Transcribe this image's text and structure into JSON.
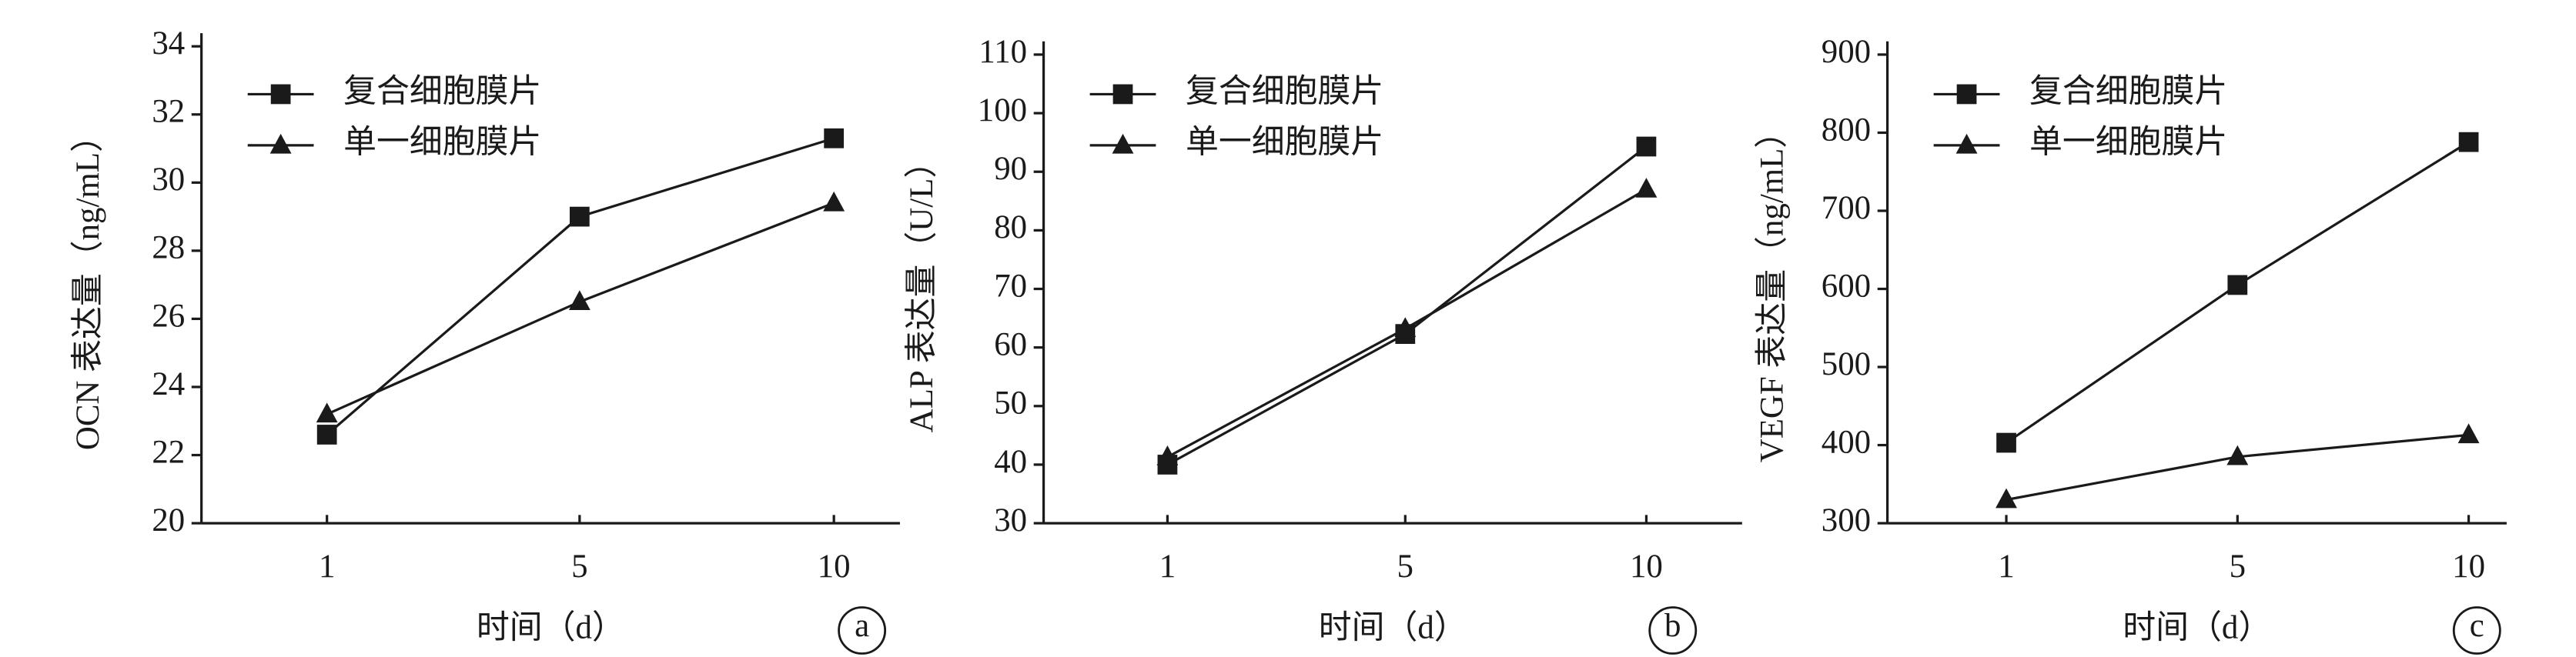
{
  "chart_data": [
    {
      "type": "line",
      "ylabel": "OCN 表达量（ng/mL）",
      "xlabel": "时间（d）",
      "panel": "a",
      "categories": [
        "1",
        "5",
        "10"
      ],
      "ylim": [
        20,
        34
      ],
      "yticks": [
        20,
        22,
        24,
        26,
        28,
        30,
        32,
        34
      ],
      "series": [
        {
          "name": "复合细胞膜片",
          "color": "#1a1a1a",
          "marker": "square",
          "values": [
            22.6,
            29.0,
            31.3
          ]
        },
        {
          "name": "单一细胞膜片",
          "color": "#1a1a1a",
          "marker": "triangle",
          "values": [
            23.2,
            26.5,
            29.4
          ]
        }
      ]
    },
    {
      "type": "line",
      "ylabel": "ALP 表达量（U/L）",
      "xlabel": "时间（d）",
      "panel": "b",
      "categories": [
        "1",
        "5",
        "10"
      ],
      "ylim": [
        30,
        110
      ],
      "yticks": [
        30,
        40,
        50,
        60,
        70,
        80,
        90,
        100,
        110
      ],
      "series": [
        {
          "name": "复合细胞膜片",
          "color": "#1a1a1a",
          "marker": "square",
          "values": [
            40,
            62.3,
            94.3
          ]
        },
        {
          "name": "单一细胞膜片",
          "color": "#1a1a1a",
          "marker": "triangle",
          "values": [
            41.3,
            63.2,
            87
          ]
        }
      ]
    },
    {
      "type": "line",
      "ylabel": "VEGF 表达量（ng/mL）",
      "xlabel": "时间（d）",
      "panel": "c",
      "categories": [
        "1",
        "5",
        "10"
      ],
      "ylim": [
        300,
        900
      ],
      "yticks": [
        300,
        400,
        500,
        600,
        700,
        800,
        900
      ],
      "series": [
        {
          "name": "复合细胞膜片",
          "color": "#1a1a1a",
          "marker": "square",
          "values": [
            403,
            605,
            788
          ]
        },
        {
          "name": "单一细胞膜片",
          "color": "#1a1a1a",
          "marker": "triangle",
          "values": [
            330,
            385,
            413
          ]
        }
      ]
    }
  ]
}
